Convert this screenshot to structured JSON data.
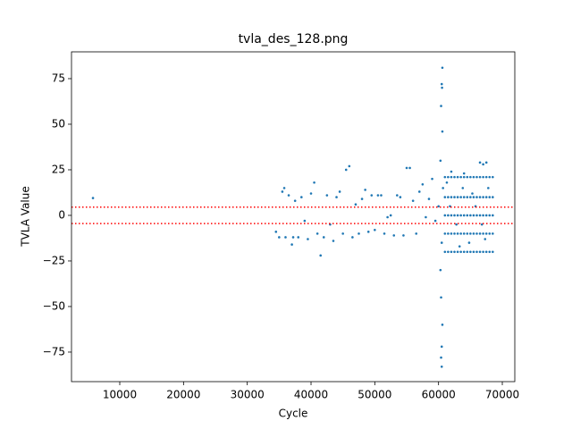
{
  "chart_data": {
    "type": "scatter",
    "title": "tvla_des_128.png",
    "xlabel": "Cycle",
    "ylabel": "TVLA Value",
    "color": "#1f77b4",
    "xlim": [
      2430,
      71960
    ],
    "ylim": [
      -91.2,
      89.7
    ],
    "xticks": [
      10000,
      20000,
      30000,
      40000,
      50000,
      60000,
      70000
    ],
    "yticks": [
      {
        "value": -75,
        "label": "−75"
      },
      {
        "value": -50,
        "label": "−50"
      },
      {
        "value": -25,
        "label": "−25"
      },
      0,
      25,
      50,
      75
    ],
    "reference_lines": [
      4.5,
      -4.5
    ],
    "reference_color": "#ff0000",
    "x": [
      5800,
      34500,
      35000,
      35500,
      35800,
      36000,
      36500,
      37000,
      37200,
      37500,
      38000,
      38500,
      39000,
      39500,
      40000,
      40500,
      41000,
      41500,
      42000,
      42500,
      43000,
      43500,
      44000,
      44500,
      45000,
      45500,
      46000,
      46500,
      47000,
      47500,
      48000,
      48500,
      49000,
      49500,
      50000,
      50500,
      51000,
      51500,
      52000,
      52500,
      53000,
      53500,
      54000,
      54500,
      55000,
      55500,
      56000,
      56500,
      57000,
      57500,
      58000,
      58500,
      59000,
      59500,
      60000,
      60500,
      60600,
      60400,
      60500,
      60600,
      60400,
      60300,
      60300,
      60700,
      60500,
      60400,
      60600,
      60500,
      60550,
      61000,
      61000,
      61000,
      61000,
      61000,
      61500,
      61500,
      61500,
      61500,
      61500,
      62000,
      62000,
      62000,
      62000,
      62000,
      62500,
      62500,
      62500,
      62500,
      62500,
      63000,
      63000,
      63000,
      63000,
      63000,
      63500,
      63500,
      63500,
      63500,
      63500,
      64000,
      64000,
      64000,
      64000,
      64000,
      64500,
      64500,
      64500,
      64500,
      64500,
      65000,
      65000,
      65000,
      65000,
      65000,
      65500,
      65500,
      65500,
      65500,
      65500,
      66000,
      66000,
      66000,
      66000,
      66000,
      66500,
      66500,
      66500,
      66500,
      66500,
      67000,
      67000,
      67000,
      67000,
      67000,
      67500,
      67500,
      67500,
      67500,
      67500,
      68000,
      68000,
      68000,
      68000,
      68000,
      68500,
      68500,
      68500,
      68500,
      68500,
      66500,
      67000,
      67500,
      62000,
      64000,
      61800,
      62800,
      63800,
      64800,
      65800,
      66800,
      67800,
      61300,
      63300,
      65300,
      67300
    ],
    "y": [
      9.5,
      -9,
      -12,
      13,
      15,
      -12,
      11,
      -16,
      -12,
      8,
      -12,
      10,
      -3,
      -13,
      12,
      18,
      -10,
      -22,
      -12,
      11,
      -5,
      -14,
      10,
      13,
      -10,
      25,
      27,
      -12,
      6,
      -10,
      9,
      14,
      -9,
      11,
      -8,
      11,
      11,
      -10,
      -1,
      0,
      -11,
      11,
      10,
      -11,
      26,
      26,
      8,
      -10,
      13,
      17,
      -1,
      9,
      20,
      -3,
      5,
      72,
      81,
      -78,
      -83,
      46,
      -45,
      30,
      -30,
      15,
      -15,
      60,
      -60,
      -72,
      70,
      21,
      10,
      0,
      -10,
      -20,
      21,
      10,
      0,
      -10,
      -20,
      21,
      10,
      0,
      -10,
      -20,
      21,
      10,
      0,
      -10,
      -20,
      21,
      10,
      0,
      -10,
      -20,
      21,
      10,
      0,
      -10,
      -20,
      21,
      10,
      0,
      -10,
      -20,
      21,
      10,
      0,
      -10,
      -20,
      21,
      10,
      0,
      -10,
      -20,
      21,
      10,
      0,
      -10,
      -20,
      21,
      10,
      0,
      -10,
      -20,
      21,
      10,
      0,
      -10,
      -20,
      21,
      10,
      0,
      -10,
      -20,
      21,
      10,
      0,
      -10,
      -20,
      21,
      10,
      0,
      -10,
      -20,
      21,
      10,
      0,
      -10,
      -20,
      29,
      28,
      29,
      24,
      23,
      5,
      -5,
      15,
      -15,
      5,
      -5,
      15,
      18,
      -17,
      12,
      -13
    ]
  }
}
